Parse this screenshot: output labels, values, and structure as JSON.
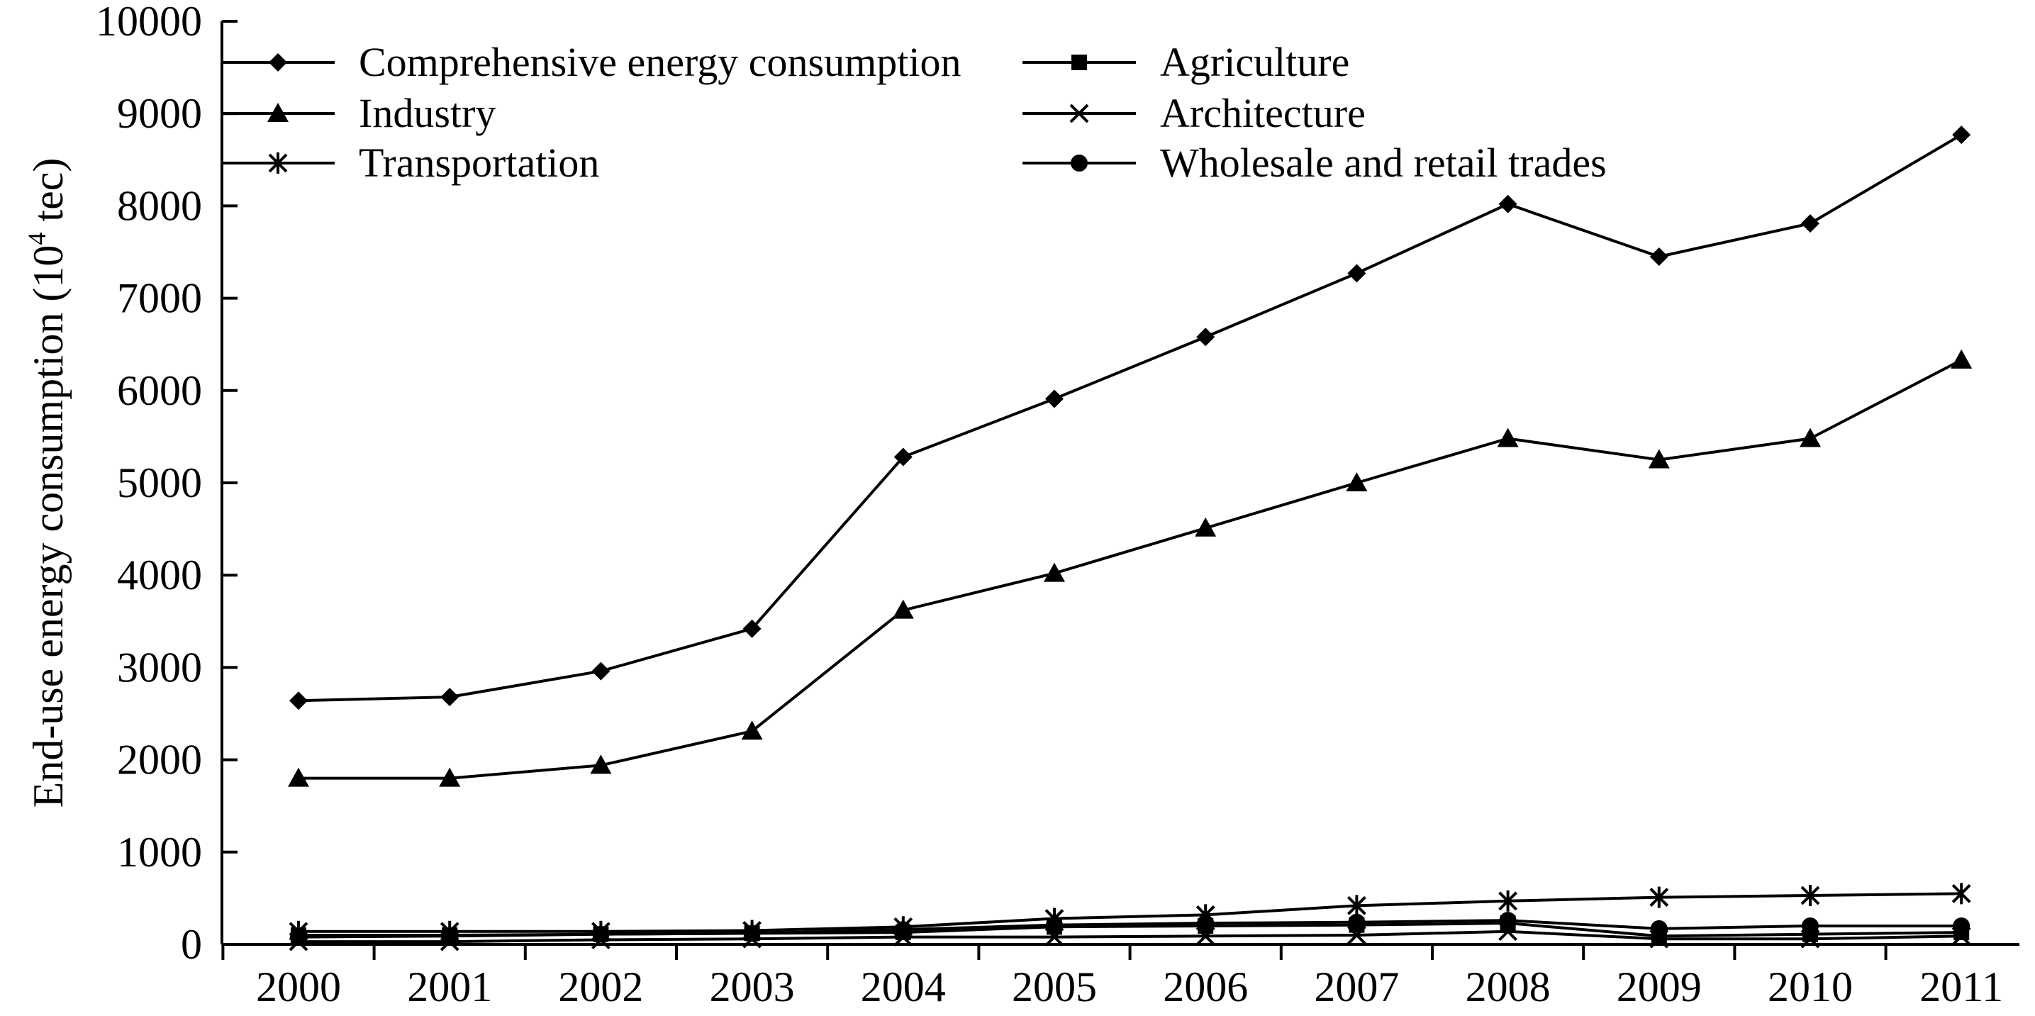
{
  "chart_data": {
    "type": "line",
    "title": "",
    "xlabel": "",
    "ylabel": "End-use energy consumption (10",
    "ylabel_sup": "4",
    "ylabel_suffix": " tec)",
    "ylim": [
      0,
      10000
    ],
    "yticks": [
      0,
      1000,
      2000,
      3000,
      4000,
      5000,
      6000,
      7000,
      8000,
      9000,
      10000
    ],
    "categories": [
      "2000",
      "2001",
      "2002",
      "2003",
      "2004",
      "2005",
      "2006",
      "2007",
      "2008",
      "2009",
      "2010",
      "2011"
    ],
    "grid": false,
    "legend": "top-left, two columns",
    "series": [
      {
        "name": "Comprehensive energy consumption",
        "marker": "diamond",
        "values": [
          2640,
          2680,
          2960,
          3420,
          5280,
          5910,
          6580,
          7270,
          8020,
          7450,
          7810,
          8770
        ]
      },
      {
        "name": "Agriculture",
        "marker": "square",
        "values": [
          100,
          100,
          110,
          120,
          130,
          190,
          200,
          210,
          230,
          90,
          110,
          130
        ]
      },
      {
        "name": "Industry",
        "marker": "triangle",
        "values": [
          1800,
          1800,
          1940,
          2310,
          3620,
          4020,
          4510,
          5000,
          5480,
          5250,
          5480,
          6330
        ]
      },
      {
        "name": "Architecture",
        "marker": "x",
        "values": [
          30,
          30,
          50,
          60,
          80,
          80,
          90,
          100,
          140,
          60,
          60,
          90
        ]
      },
      {
        "name": "Transportation",
        "marker": "asterisk",
        "values": [
          140,
          140,
          140,
          150,
          190,
          280,
          320,
          420,
          470,
          510,
          530,
          550
        ]
      },
      {
        "name": "Wholesale and retail trades",
        "marker": "circle",
        "values": [
          80,
          90,
          110,
          120,
          160,
          210,
          230,
          240,
          260,
          170,
          200,
          200
        ]
      }
    ]
  }
}
